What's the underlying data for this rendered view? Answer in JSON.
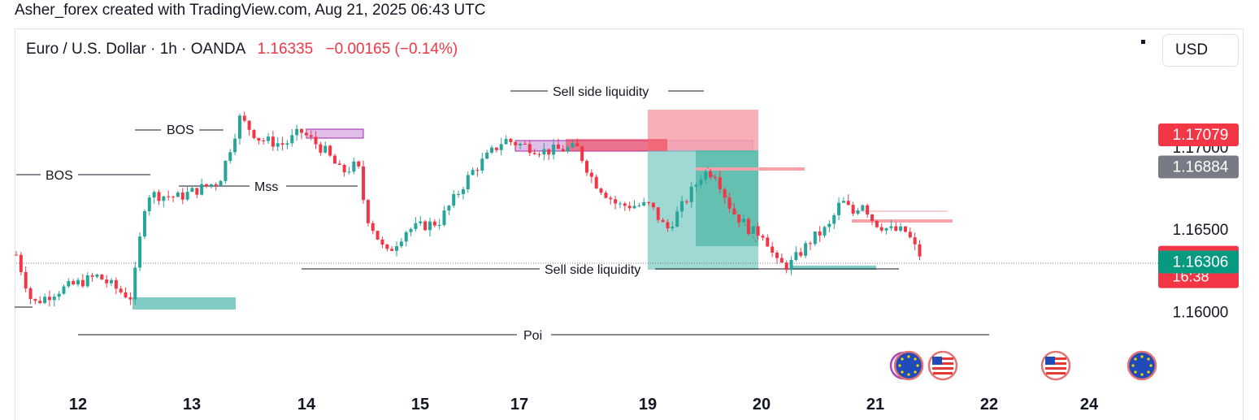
{
  "header": {
    "title": "Asher_forex created with TradingView.com, Aug 21, 2025 06:43 UTC"
  },
  "legend": {
    "symbol": "Euro / U.S. Dollar · 1h · OANDA",
    "last": "1.16335",
    "change": "−0.00165 (−0.14%)"
  },
  "toolbar": {
    "currency": "USD"
  },
  "colors": {
    "up": "#26a69a",
    "down": "#f23645",
    "zone_green": "#80cbc4",
    "zone_red": "#f7a1a9",
    "zone_purple": "#e1bee7"
  },
  "chart_data": {
    "type": "candlestick",
    "symbol": "EURUSD",
    "timeframe": "1h",
    "x_ticks": [
      "12",
      "13",
      "14",
      "15",
      "17",
      "19",
      "20",
      "21",
      "22",
      "24"
    ],
    "y_ticks": [
      "1.16000",
      "1.16500",
      "1.17000"
    ],
    "ylim": [
      1.1575,
      1.1743
    ],
    "price_labels": [
      {
        "text": "1.17079",
        "value": 1.17079,
        "color": "#f23645"
      },
      {
        "text": "1.16884",
        "value": 1.16884,
        "color": "#787b86"
      },
      {
        "text": "1.16335",
        "value": 1.16335,
        "color": "#f23645",
        "sub": "16:38"
      },
      {
        "text": "1.16306",
        "value": 1.16306,
        "color": "#089981"
      }
    ],
    "annotations": {
      "bos_1": "BOS",
      "bos_2": "BOS",
      "mss": "Mss",
      "sell_side_top": "Sell side liquidity",
      "sell_side_bottom": "Sell side liquidity",
      "poi": "Poi"
    },
    "anchors": [
      {
        "x": 0,
        "y": 1.1635
      },
      {
        "x": 20,
        "y": 1.1605
      },
      {
        "x": 50,
        "y": 1.1613
      },
      {
        "x": 100,
        "y": 1.1622
      },
      {
        "x": 130,
        "y": 1.1612
      },
      {
        "x": 142,
        "y": 1.1609
      },
      {
        "x": 160,
        "y": 1.1672
      },
      {
        "x": 200,
        "y": 1.167
      },
      {
        "x": 250,
        "y": 1.168
      },
      {
        "x": 275,
        "y": 1.1718
      },
      {
        "x": 300,
        "y": 1.1705
      },
      {
        "x": 330,
        "y": 1.1702
      },
      {
        "x": 350,
        "y": 1.171
      },
      {
        "x": 380,
        "y": 1.1698
      },
      {
        "x": 400,
        "y": 1.1685
      },
      {
        "x": 420,
        "y": 1.169
      },
      {
        "x": 430,
        "y": 1.166
      },
      {
        "x": 455,
        "y": 1.1635
      },
      {
        "x": 480,
        "y": 1.165
      },
      {
        "x": 520,
        "y": 1.1655
      },
      {
        "x": 560,
        "y": 1.1685
      },
      {
        "x": 600,
        "y": 1.1705
      },
      {
        "x": 620,
        "y": 1.1702
      },
      {
        "x": 650,
        "y": 1.1698
      },
      {
        "x": 690,
        "y": 1.17
      },
      {
        "x": 710,
        "y": 1.168
      },
      {
        "x": 740,
        "y": 1.1665
      },
      {
        "x": 780,
        "y": 1.1665
      },
      {
        "x": 800,
        "y": 1.165
      },
      {
        "x": 820,
        "y": 1.1665
      },
      {
        "x": 845,
        "y": 1.1685
      },
      {
        "x": 860,
        "y": 1.1685
      },
      {
        "x": 880,
        "y": 1.1662
      },
      {
        "x": 905,
        "y": 1.1649
      },
      {
        "x": 920,
        "y": 1.1648
      },
      {
        "x": 935,
        "y": 1.163
      },
      {
        "x": 950,
        "y": 1.1628
      },
      {
        "x": 980,
        "y": 1.1645
      },
      {
        "x": 1000,
        "y": 1.1652
      },
      {
        "x": 1015,
        "y": 1.1668
      },
      {
        "x": 1030,
        "y": 1.166
      },
      {
        "x": 1040,
        "y": 1.1668
      },
      {
        "x": 1055,
        "y": 1.1655
      },
      {
        "x": 1075,
        "y": 1.165
      },
      {
        "x": 1095,
        "y": 1.1649
      },
      {
        "x": 1112,
        "y": 1.16335
      }
    ]
  }
}
